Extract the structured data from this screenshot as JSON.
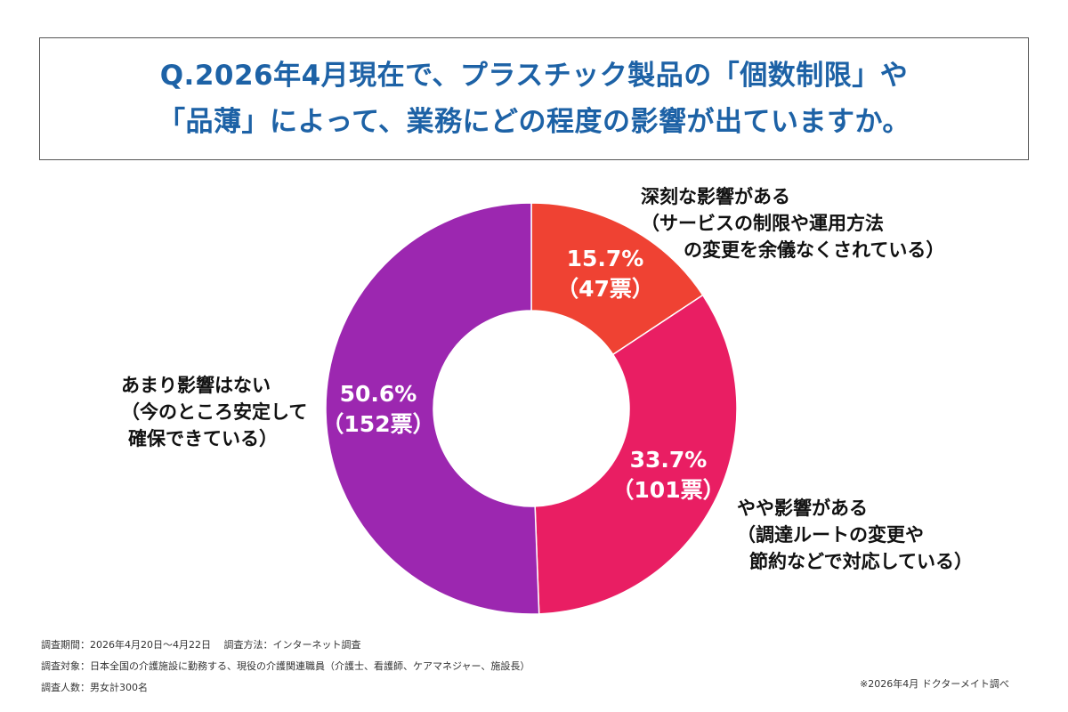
{
  "title": {
    "line1": "Q.2026年4月現在で、プラスチック製品の「個数制限」や",
    "line2": "「品薄」によって、業務にどの程度の影響が出ていますか。"
  },
  "chart_data": {
    "type": "pie",
    "style": "donut",
    "slices": [
      {
        "label_lines": [
          "深刻な影響がある",
          "（サービスの制限や運用方法",
          "の変更を余儀なくされている）"
        ],
        "percent": 15.7,
        "percent_text": "15.7%",
        "votes": 47,
        "votes_text": "（47票）",
        "color": "#ef4233"
      },
      {
        "label_lines": [
          "やや影響がある",
          "（調達ルートの変更や",
          "節約などで対応している）"
        ],
        "percent": 33.7,
        "percent_text": "33.7%",
        "votes": 101,
        "votes_text": "（101票）",
        "color": "#e91e63"
      },
      {
        "label_lines": [
          "あまり影響はない",
          "（今のところ安定して",
          "確保できている）"
        ],
        "percent": 50.6,
        "percent_text": "50.6%",
        "votes": 152,
        "votes_text": "（152票）",
        "color": "#9c27b0"
      }
    ]
  },
  "footnotes": {
    "period": "調査期間：2026年4月20日〜4月22日　 調査方法：インターネット調査",
    "target": "調査対象：日本全国の介護施設に勤務する、現役の介護関連職員（介護士、看護師、ケアマネジャー、施設長）",
    "count": "調査人数：男女計300名",
    "source": "※2026年4月 ドクターメイト調べ"
  }
}
